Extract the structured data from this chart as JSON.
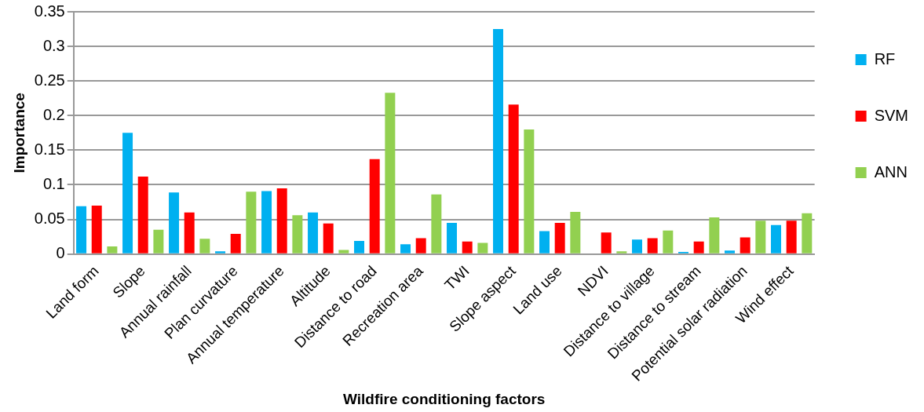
{
  "chart_data": {
    "type": "bar",
    "xlabel": "Wildfire conditioning factors",
    "ylabel": "Importance",
    "categories": [
      "Land form",
      "Slope",
      "Annual rainfall",
      "Plan curvature",
      "Annual temperature",
      "Altitude",
      "Distance to road",
      "Recreation area",
      "TWI",
      "Slope aspect",
      "Land use",
      "NDVI",
      "Distance to village",
      "Distance to stream",
      "Potential solar radiation",
      "Wind effect"
    ],
    "series": [
      {
        "name": "RF",
        "color": "#00b0f0",
        "values": [
          0.069,
          0.175,
          0.089,
          0.004,
          0.091,
          0.06,
          0.019,
          0.014,
          0.045,
          0.325,
          0.033,
          0,
          0.021,
          0.003,
          0.005,
          0.042
        ]
      },
      {
        "name": "SVM",
        "color": "#ff0000",
        "values": [
          0.07,
          0.112,
          0.06,
          0.029,
          0.095,
          0.044,
          0.137,
          0.023,
          0.018,
          0.216,
          0.045,
          0.031,
          0.023,
          0.018,
          0.024,
          0.048
        ]
      },
      {
        "name": "ANN",
        "color": "#92d050",
        "values": [
          0.011,
          0.035,
          0.022,
          0.09,
          0.056,
          0.006,
          0.233,
          0.086,
          0.016,
          0.18,
          0.061,
          0.004,
          0.034,
          0.053,
          0.048,
          0.059
        ]
      }
    ],
    "ylim": [
      0,
      0.35
    ],
    "yticks": [
      0,
      0.05,
      0.1,
      0.15,
      0.2,
      0.25,
      0.3,
      0.35
    ],
    "grid": "y",
    "legend": "right"
  }
}
